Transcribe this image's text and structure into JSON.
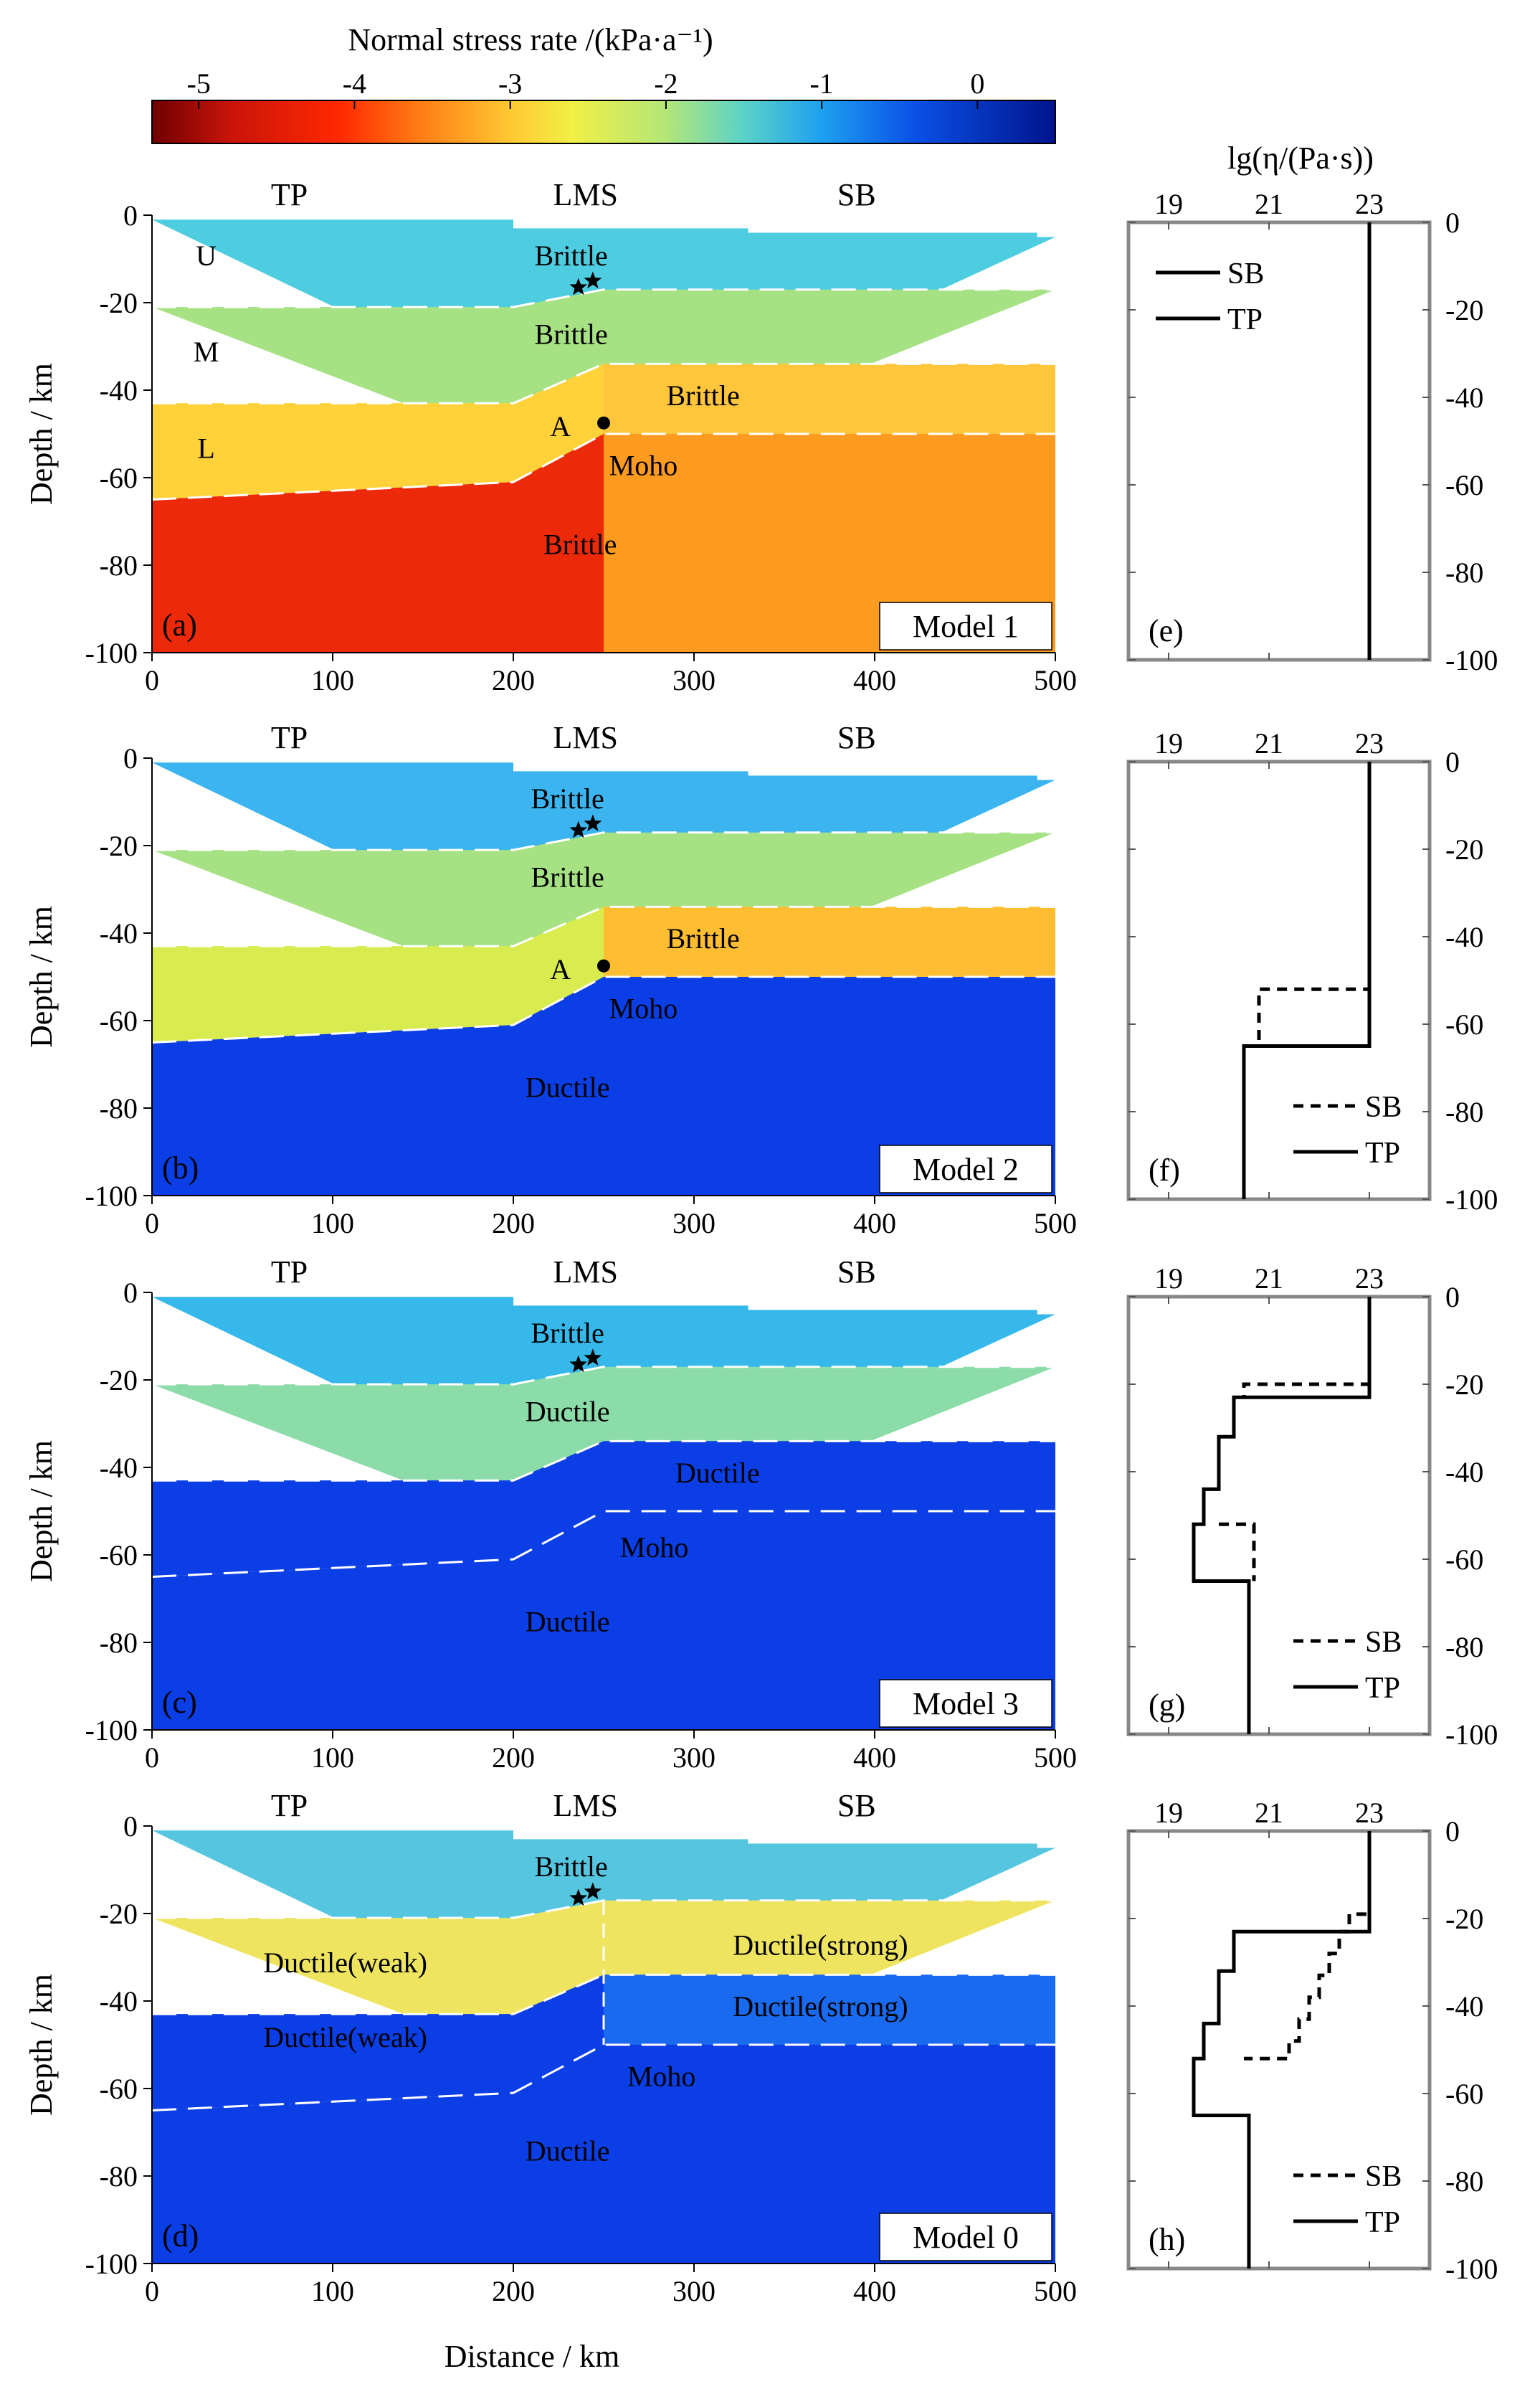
{
  "colorbar": {
    "title": "Normal stress rate /(kPa·a⁻¹)",
    "ticks": [
      -5,
      -4,
      -3,
      -2,
      -1,
      0
    ],
    "range": [
      -5.3,
      0.5
    ],
    "stops": [
      {
        "v": -5.3,
        "c": "#6e0000"
      },
      {
        "v": -4.8,
        "c": "#c8140a"
      },
      {
        "v": -4.1,
        "c": "#ff2800"
      },
      {
        "v": -3.6,
        "c": "#ff7a14"
      },
      {
        "v": -3.0,
        "c": "#ffc832"
      },
      {
        "v": -2.6,
        "c": "#f0f046"
      },
      {
        "v": -2.0,
        "c": "#b4e678"
      },
      {
        "v": -1.5,
        "c": "#5ad2c8"
      },
      {
        "v": -1.0,
        "c": "#1ea0f0"
      },
      {
        "v": -0.4,
        "c": "#0a50e6"
      },
      {
        "v": 0.5,
        "c": "#00148c"
      }
    ]
  },
  "axes": {
    "x_label": "Distance / km",
    "y_label": "Depth / km",
    "x_ticks": [
      0,
      100,
      200,
      300,
      400,
      500
    ],
    "y_ticks": [
      0,
      -20,
      -40,
      -60,
      -80,
      -100
    ],
    "xlim": [
      0,
      500
    ],
    "ylim": [
      -100,
      0
    ]
  },
  "regions": {
    "left": "TP",
    "center": "LMS",
    "right": "SB"
  },
  "panels": [
    {
      "letter": "(a)",
      "model": "Model 1",
      "colors": {
        "top": "#4ecce0",
        "upper": "#a6e184",
        "middle": "#d4ec52",
        "lower_tp": "#ffd23a",
        "mantle_tp": "#ec2a0a",
        "lower_sb": "#ffc63c",
        "mantle_sb": "#fd9a20"
      },
      "labels": [
        {
          "text": "U",
          "x": 30,
          "y": -9
        },
        {
          "text": "M",
          "x": 30,
          "y": -31
        },
        {
          "text": "L",
          "x": 30,
          "y": -53
        },
        {
          "text": "Brittle",
          "x": 232,
          "y": -9
        },
        {
          "text": "Brittle",
          "x": 232,
          "y": -27
        },
        {
          "text": "Brittle",
          "x": 305,
          "y": -41
        },
        {
          "text": "A",
          "x": 226,
          "y": -48
        },
        {
          "text": "Moho",
          "x": 272,
          "y": -57
        },
        {
          "text": "Brittle",
          "x": 237,
          "y": -75
        }
      ],
      "show_A": true
    },
    {
      "letter": "(b)",
      "model": "Model 2",
      "colors": {
        "top": "#3cb4f0",
        "upper": "#a6e184",
        "middle": "#d4ec52",
        "lower_tp": "#d8ec50",
        "mantle_tp": "#0c3ee6",
        "lower_sb": "#ffbe32",
        "mantle_sb": "#0c3ee6"
      },
      "labels": [
        {
          "text": "Brittle",
          "x": 230,
          "y": -9
        },
        {
          "text": "Brittle",
          "x": 230,
          "y": -27
        },
        {
          "text": "Brittle",
          "x": 305,
          "y": -41
        },
        {
          "text": "A",
          "x": 226,
          "y": -48
        },
        {
          "text": "Moho",
          "x": 272,
          "y": -57
        },
        {
          "text": "Ductile",
          "x": 230,
          "y": -75
        }
      ],
      "show_A": true
    },
    {
      "letter": "(c)",
      "model": "Model 3",
      "colors": {
        "top": "#36b8ea",
        "upper": "#8cdcaa",
        "middle": "#0c3ee6",
        "lower_tp": "#0c3ee6",
        "mantle_tp": "#0c3ee6",
        "lower_sb": "#0c3ee6",
        "mantle_sb": "#0c3ee6"
      },
      "labels": [
        {
          "text": "Brittle",
          "x": 230,
          "y": -9
        },
        {
          "text": "Ductile",
          "x": 230,
          "y": -27
        },
        {
          "text": "Ductile",
          "x": 313,
          "y": -41
        },
        {
          "text": "Moho",
          "x": 278,
          "y": -58
        },
        {
          "text": "Ductile",
          "x": 230,
          "y": -75
        }
      ],
      "show_A": false
    },
    {
      "letter": "(d)",
      "model": "Model 0",
      "colors": {
        "top": "#56c6e0",
        "upper": "#eee460",
        "middle": "#0c3ee6",
        "lower_tp": "#0c3ee6",
        "mantle_tp": "#0c3ee6",
        "lower_sb": "#1a6af0",
        "mantle_sb": "#0c3ee6"
      },
      "labels": [
        {
          "text": "Brittle",
          "x": 232,
          "y": -9
        },
        {
          "text": "Ductile(weak)",
          "x": 107,
          "y": -31
        },
        {
          "text": "Ductile(weak)",
          "x": 107,
          "y": -48
        },
        {
          "text": "Ductile(strong)",
          "x": 370,
          "y": -27
        },
        {
          "text": "Ductile(strong)",
          "x": 370,
          "y": -41
        },
        {
          "text": "Moho",
          "x": 282,
          "y": -57
        },
        {
          "text": "Ductile",
          "x": 230,
          "y": -74
        }
      ],
      "show_A": false
    }
  ],
  "viscosity": {
    "title": "lg(η/(Pa·s))",
    "x_ticks": [
      19,
      21,
      23
    ],
    "xlim": [
      18.2,
      24.2
    ],
    "y_ticks": [
      0,
      -20,
      -40,
      -60,
      -80,
      -100
    ],
    "panels": [
      {
        "letter": "(e)",
        "legend": [
          {
            "label": "SB",
            "style": "solid"
          },
          {
            "label": "TP",
            "style": "solid"
          }
        ],
        "legend_pos": "top-left",
        "show_title": true,
        "sb": [
          [
            23,
            0
          ],
          [
            23,
            -100
          ]
        ],
        "tp": [
          [
            23,
            0
          ],
          [
            23,
            -100
          ]
        ]
      },
      {
        "letter": "(f)",
        "legend": [
          {
            "label": "SB",
            "style": "dashed"
          },
          {
            "label": "TP",
            "style": "solid"
          }
        ],
        "legend_pos": "bottom-right",
        "show_title": false,
        "sb": [
          [
            23,
            0
          ],
          [
            23,
            -52
          ],
          [
            20.8,
            -52
          ],
          [
            20.8,
            -65
          ]
        ],
        "tp": [
          [
            23,
            0
          ],
          [
            23,
            -65
          ],
          [
            20.5,
            -65
          ],
          [
            20.5,
            -100
          ]
        ]
      },
      {
        "letter": "(g)",
        "legend": [
          {
            "label": "SB",
            "style": "dashed"
          },
          {
            "label": "TP",
            "style": "solid"
          }
        ],
        "legend_pos": "bottom-right",
        "show_title": false,
        "sb": [
          [
            23,
            0
          ],
          [
            23,
            -20
          ],
          [
            20.5,
            -20
          ],
          [
            20.5,
            -23
          ]
        ],
        "tp": [
          [
            23,
            0
          ],
          [
            23,
            -23
          ],
          [
            20.3,
            -23
          ],
          [
            20.3,
            -32
          ],
          [
            20.0,
            -32
          ],
          [
            20.0,
            -44
          ],
          [
            19.7,
            -44
          ],
          [
            19.7,
            -52
          ],
          [
            19.5,
            -52
          ],
          [
            19.5,
            -65
          ],
          [
            20.6,
            -65
          ],
          [
            20.6,
            -100
          ]
        ],
        "sb2": [
          [
            20.0,
            -52
          ],
          [
            20.7,
            -52
          ],
          [
            20.7,
            -65
          ]
        ]
      },
      {
        "letter": "(h)",
        "legend": [
          {
            "label": "SB",
            "style": "dashed"
          },
          {
            "label": "TP",
            "style": "solid"
          }
        ],
        "legend_pos": "bottom-right",
        "show_title": false,
        "sb": [
          [
            23,
            0
          ],
          [
            23,
            -19
          ],
          [
            22.6,
            -19
          ],
          [
            22.6,
            -23
          ],
          [
            22.4,
            -23
          ],
          [
            22.4,
            -28
          ],
          [
            22.2,
            -28
          ],
          [
            22.2,
            -33
          ],
          [
            22.0,
            -33
          ],
          [
            22.0,
            -38
          ],
          [
            21.8,
            -38
          ],
          [
            21.8,
            -43
          ],
          [
            21.6,
            -43
          ],
          [
            21.6,
            -48
          ],
          [
            21.4,
            -48
          ],
          [
            21.4,
            -52
          ],
          [
            20.5,
            -52
          ]
        ],
        "tp": [
          [
            23,
            0
          ],
          [
            23,
            -23
          ],
          [
            20.3,
            -23
          ],
          [
            20.3,
            -32
          ],
          [
            20.0,
            -32
          ],
          [
            20.0,
            -44
          ],
          [
            19.7,
            -44
          ],
          [
            19.7,
            -52
          ],
          [
            19.5,
            -52
          ],
          [
            19.5,
            -65
          ],
          [
            20.6,
            -65
          ],
          [
            20.6,
            -100
          ]
        ]
      }
    ]
  }
}
